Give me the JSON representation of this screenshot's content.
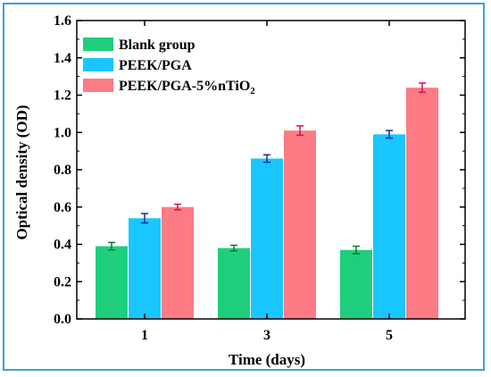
{
  "chart_data": {
    "type": "bar",
    "xlabel": "Time (days)",
    "ylabel": "Optical density (OD)",
    "categories": [
      "1",
      "3",
      "5"
    ],
    "ylim": [
      0.0,
      1.6
    ],
    "yticks": [
      "0.0",
      "0.2",
      "0.4",
      "0.6",
      "0.8",
      "1.0",
      "1.2",
      "1.4",
      "1.6"
    ],
    "legend_position": "top-left",
    "grid": false,
    "series": [
      {
        "name": "Blank group",
        "color": "#1fce7d",
        "error_color": "#0a7a2a",
        "values": [
          0.39,
          0.38,
          0.37
        ],
        "errors": [
          0.02,
          0.015,
          0.02
        ]
      },
      {
        "name": "PEEK/PGA",
        "color": "#19c6ff",
        "error_color": "#1a2a9a",
        "values": [
          0.54,
          0.86,
          0.99
        ],
        "errors": [
          0.025,
          0.02,
          0.02
        ]
      },
      {
        "name": "PEEK/PGA-5%nTiO2",
        "name_main": "PEEK/PGA-5%nTiO",
        "name_sub": "2",
        "color": "#fd7b85",
        "error_color": "#d4105a",
        "values": [
          0.6,
          1.01,
          1.24
        ],
        "errors": [
          0.015,
          0.025,
          0.025
        ]
      }
    ]
  }
}
